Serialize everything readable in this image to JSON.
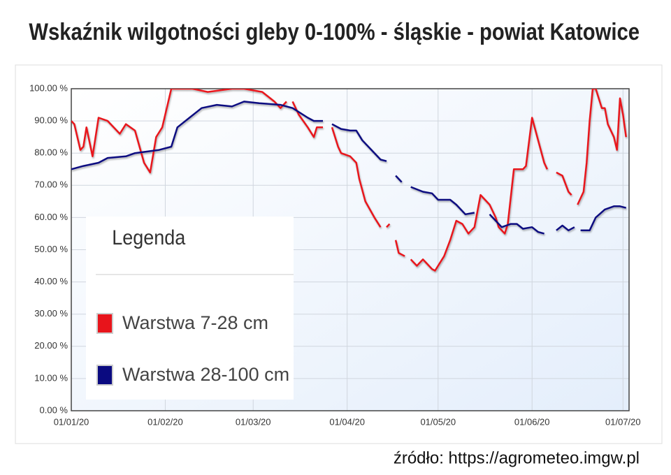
{
  "chart_data": {
    "type": "line",
    "title": "Wskaźnik wilgotności gleby 0-100% - śląskie - powiat Katowice",
    "source": "źródło: https://agrometeo.imgw.pl",
    "legend_title": "Legenda",
    "xlim": [
      "01/01/20",
      "03/07/20"
    ],
    "xticks": [
      "01/01/20",
      "01/02/20",
      "01/03/20",
      "01/04/20",
      "01/05/20",
      "01/06/20",
      "01/07/20"
    ],
    "ylim": [
      0,
      100
    ],
    "yticks": [
      {
        "value": 0,
        "label": "0.00 %"
      },
      {
        "value": 10,
        "label": "10.00 %"
      },
      {
        "value": 20,
        "label": "20.00 %"
      },
      {
        "value": 30,
        "label": "30.00 %"
      },
      {
        "value": 40,
        "label": "40.00 %"
      },
      {
        "value": 50,
        "label": "50.00 %"
      },
      {
        "value": 60,
        "label": "60.00 %"
      },
      {
        "value": 70,
        "label": "70.00 %"
      },
      {
        "value": 80,
        "label": "80.00 %"
      },
      {
        "value": 90,
        "label": "90.00 %"
      },
      {
        "value": 100,
        "label": "100.00 %"
      }
    ],
    "grid": true,
    "series": [
      {
        "name": "Warstwa 7-28 cm",
        "color": "#e8141b",
        "x": [
          "01/01/20",
          "02/01/20",
          "04/01/20",
          "05/01/20",
          "06/01/20",
          "08/01/20",
          "10/01/20",
          "13/01/20",
          "17/01/20",
          "19/01/20",
          "22/01/20",
          "25/01/20",
          "27/01/20",
          "29/01/20",
          "31/01/20",
          "02/02/20",
          "03/02/20",
          "10/02/20",
          "15/02/20",
          "23/02/20",
          "27/02/20",
          "04/03/20",
          "08/03/20",
          "10/03/20",
          "12/03/20",
          "13/03/20",
          "14/03/20",
          "16/03/20",
          "19/03/20",
          "21/03/20",
          "22/03/20",
          "24/03/20",
          "25/03/20",
          "27/03/20",
          "29/03/20",
          "30/03/20",
          "02/04/20",
          "04/04/20",
          "05/04/20",
          "07/04/20",
          "10/04/20",
          "12/04/20",
          "13/04/20",
          "14/04/20",
          "15/04/20",
          "16/04/20",
          "17/04/20",
          "18/04/20",
          "20/04/20",
          "21/04/20",
          "22/04/20",
          "24/04/20",
          "26/04/20",
          "27/04/20",
          "29/04/20",
          "30/04/20",
          "03/05/20",
          "05/05/20",
          "07/05/20",
          "09/05/20",
          "11/05/20",
          "13/05/20",
          "15/05/20",
          "18/05/20",
          "20/05/20",
          "21/05/20",
          "23/05/20",
          "24/05/20",
          "26/05/20",
          "29/05/20",
          "30/05/20",
          "01/06/20",
          "03/06/20",
          "05/06/20",
          "06/06/20",
          "07/06/20",
          "09/06/20",
          "11/06/20",
          "13/06/20",
          "14/06/20",
          "15/06/20",
          "16/06/20",
          "18/06/20",
          "19/06/20",
          "20/06/20",
          "21/06/20",
          "22/06/20",
          "24/06/20",
          "25/06/20",
          "26/06/20",
          "28/06/20",
          "29/06/20",
          "30/06/20",
          "01/07/20",
          "02/07/20"
        ],
        "values": [
          90,
          89,
          81,
          82,
          88,
          79,
          91,
          90,
          86,
          89,
          87,
          77,
          74,
          85,
          88,
          96,
          100,
          100,
          99,
          100,
          100,
          99,
          96,
          94,
          96,
          null,
          96,
          92,
          88,
          85,
          88,
          88,
          null,
          88,
          82,
          80,
          79,
          77,
          72,
          65,
          60,
          57,
          null,
          57,
          58,
          null,
          53,
          49,
          48,
          null,
          47,
          45,
          47,
          46,
          44,
          43.5,
          48,
          53,
          59,
          58,
          55,
          57,
          67,
          64,
          60,
          57,
          55,
          58,
          75,
          75,
          76,
          91,
          84,
          77,
          75,
          null,
          74,
          73,
          68,
          67,
          null,
          64,
          68,
          77,
          90,
          100,
          100,
          94,
          94,
          89,
          85,
          81,
          97,
          92,
          85
        ]
      },
      {
        "name": "Warstwa 28-100 cm",
        "color": "#0a0a80",
        "x": [
          "01/01/20",
          "05/01/20",
          "10/01/20",
          "13/01/20",
          "19/01/20",
          "22/01/20",
          "30/01/20",
          "03/02/20",
          "05/02/20",
          "09/02/20",
          "13/02/20",
          "18/02/20",
          "23/02/20",
          "27/02/20",
          "03/03/20",
          "10/03/20",
          "14/03/20",
          "19/03/20",
          "21/03/20",
          "24/03/20",
          "25/03/20",
          "27/03/20",
          "30/03/20",
          "02/04/20",
          "04/04/20",
          "06/04/20",
          "09/04/20",
          "12/04/20",
          "14/04/20",
          "15/04/20",
          "17/04/20",
          "19/04/20",
          "20/04/20",
          "22/04/20",
          "26/04/20",
          "29/04/20",
          "01/05/20",
          "05/05/20",
          "07/05/20",
          "10/05/20",
          "13/05/20",
          "15/05/20",
          "18/05/20",
          "20/05/20",
          "22/05/20",
          "25/05/20",
          "27/05/20",
          "29/05/20",
          "01/06/20",
          "03/06/20",
          "05/06/20",
          "07/06/20",
          "09/06/20",
          "11/06/20",
          "13/06/20",
          "15/06/20",
          "16/06/20",
          "17/06/20",
          "20/06/20",
          "22/06/20",
          "25/06/20",
          "28/06/20",
          "30/06/20",
          "02/07/20"
        ],
        "values": [
          75,
          76,
          77,
          78.5,
          79,
          80,
          81,
          82,
          88,
          91,
          94,
          95,
          94.5,
          96,
          95.5,
          95,
          94,
          91,
          90,
          90,
          null,
          89,
          87.5,
          87,
          87,
          84,
          81,
          78,
          77.5,
          null,
          73,
          71,
          null,
          69.5,
          68,
          67.5,
          65.5,
          65.5,
          64,
          61,
          61.5,
          null,
          61,
          59,
          57,
          58,
          58,
          56.5,
          57,
          55.5,
          55,
          null,
          56,
          57.5,
          56,
          57,
          null,
          56,
          56,
          60,
          62.5,
          63.5,
          63.5,
          63
        ]
      }
    ]
  }
}
